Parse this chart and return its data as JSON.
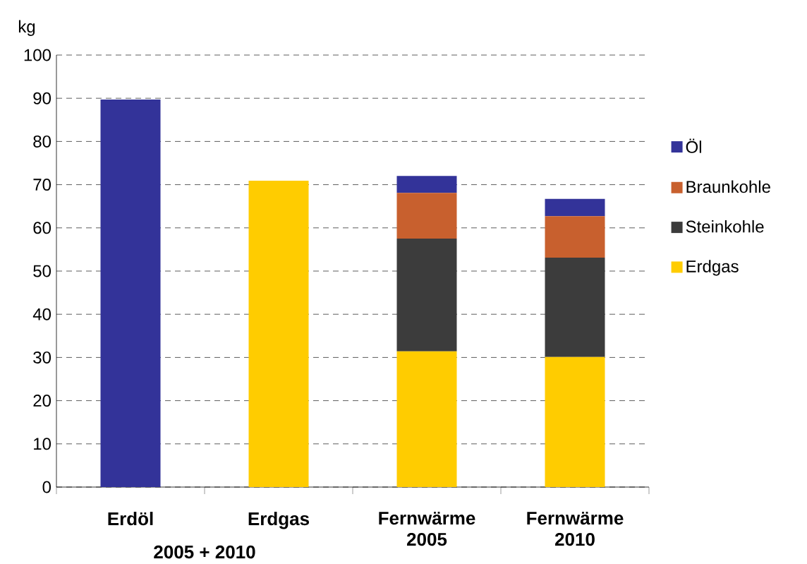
{
  "chart_data": {
    "type": "bar",
    "stacked": true,
    "ylabel": "kg",
    "categories": [
      "Erdöl",
      "Erdgas",
      "Fernwärme 2005",
      "Fernwärme 2010"
    ],
    "annotations": [
      "2005 + 2010"
    ],
    "series": [
      {
        "name": "Erdgas",
        "color": "#ffcc00",
        "values": [
          null,
          70.9,
          31.4,
          30.1
        ]
      },
      {
        "name": "Steinkohle",
        "color": "#3c3c3c",
        "values": [
          null,
          null,
          26.1,
          23.0
        ]
      },
      {
        "name": "Braunkohle",
        "color": "#c8602e",
        "values": [
          null,
          null,
          10.6,
          9.6
        ]
      },
      {
        "name": "Öl",
        "color": "#333399",
        "values": [
          89.7,
          null,
          3.9,
          4.0
        ]
      }
    ],
    "ylim": [
      0,
      100
    ],
    "yticks": [
      0,
      10,
      20,
      30,
      40,
      50,
      60,
      70,
      80,
      90,
      100
    ],
    "grid": "y",
    "legend": "right"
  }
}
